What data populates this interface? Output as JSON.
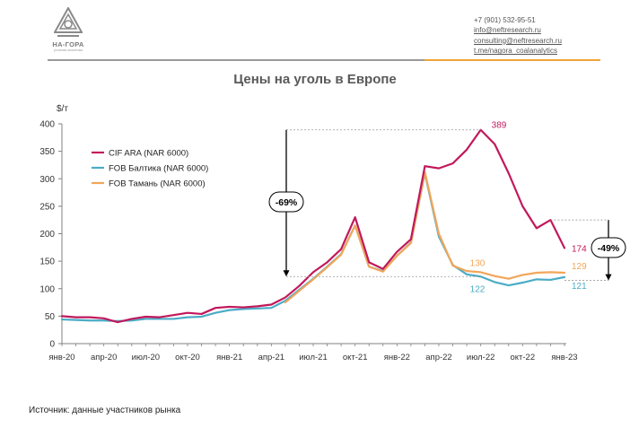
{
  "header": {
    "logo_name": "НА-ГОРА",
    "logo_tagline": "угольная аналитика",
    "contacts": [
      "+7 (901) 532-95-51",
      "info@neftresearch.ru",
      "consulting@neftresearch.ru",
      "t.me/nagora_coalanalytics"
    ]
  },
  "title": "Цены на уголь в Европе",
  "source": "Источник: данные участников рынка",
  "colors": {
    "cif": "#c2185b",
    "baltic": "#4bacc6",
    "taman": "#f2a65a",
    "axis": "#808080",
    "annotation": "#000000",
    "brand_gray": "#8a8a8a",
    "brand_orange": "#f2a33a"
  },
  "chart_data": {
    "type": "line",
    "ylabel": "$/т",
    "ylim": [
      0,
      400
    ],
    "yticks": [
      0,
      50,
      100,
      150,
      200,
      250,
      300,
      350,
      400
    ],
    "xtick_labels": [
      "янв-20",
      "апр-20",
      "июл-20",
      "окт-20",
      "янв-21",
      "апр-21",
      "июл-21",
      "окт-21",
      "янв-22",
      "апр-22",
      "июл-22",
      "окт-22",
      "янв-23"
    ],
    "xticks_index": [
      0,
      3,
      6,
      9,
      12,
      15,
      18,
      21,
      24,
      27,
      30,
      33,
      36
    ],
    "x_month_index_note": "",
    "legend_position": "top-left",
    "grid": false,
    "series": [
      {
        "name": "CIF ARA (NAR 6000)",
        "color_key": "cif",
        "values": [
          50,
          48,
          48,
          46,
          39,
          45,
          49,
          48,
          52,
          56,
          54,
          65,
          67,
          66,
          68,
          71,
          84,
          105,
          130,
          148,
          172,
          230,
          148,
          136,
          167,
          190,
          323,
          319,
          328,
          353,
          389,
          363,
          310,
          250,
          210,
          225,
          174
        ]
      },
      {
        "name": "FOB Балтика (NAR 6000)",
        "color_key": "baltic",
        "values": [
          44,
          43,
          42,
          42,
          41,
          42,
          45,
          45,
          45,
          48,
          49,
          56,
          61,
          63,
          64,
          65,
          78,
          98,
          118,
          140,
          163,
          215,
          140,
          132,
          160,
          184,
          310,
          195,
          143,
          126,
          122,
          112,
          106,
          111,
          117,
          116,
          121
        ]
      },
      {
        "name": "FOB Тамань (NAR 6000)",
        "color_key": "taman",
        "values": [
          null,
          null,
          null,
          null,
          null,
          null,
          null,
          null,
          null,
          null,
          null,
          null,
          null,
          null,
          null,
          null,
          75,
          96,
          117,
          139,
          162,
          215,
          140,
          131,
          160,
          183,
          312,
          200,
          142,
          132,
          130,
          123,
          118,
          125,
          129,
          130,
          129
        ]
      }
    ],
    "annotations": [
      {
        "text": "389",
        "series": "CIF ARA (NAR 6000)",
        "index": 30,
        "color_key": "cif"
      },
      {
        "text": "174",
        "series": "CIF ARA (NAR 6000)",
        "index": 36,
        "color_key": "cif"
      },
      {
        "text": "130",
        "series": "FOB Тамань (NAR 6000)",
        "index": 30,
        "color_key": "taman"
      },
      {
        "text": "129",
        "series": "FOB Тамань (NAR 6000)",
        "index": 36,
        "color_key": "taman"
      },
      {
        "text": "122",
        "series": "FOB Балтика (NAR 6000)",
        "index": 30,
        "color_key": "baltic"
      },
      {
        "text": "121",
        "series": "FOB Балтика (NAR 6000)",
        "index": 36,
        "color_key": "baltic"
      }
    ],
    "change_markers": [
      {
        "label": "-69%",
        "from_value": 389,
        "to_value": 122,
        "at_index": 16
      },
      {
        "label": "-49%",
        "from_value": 225,
        "to_value": 115,
        "at_index": 38.7
      }
    ]
  }
}
